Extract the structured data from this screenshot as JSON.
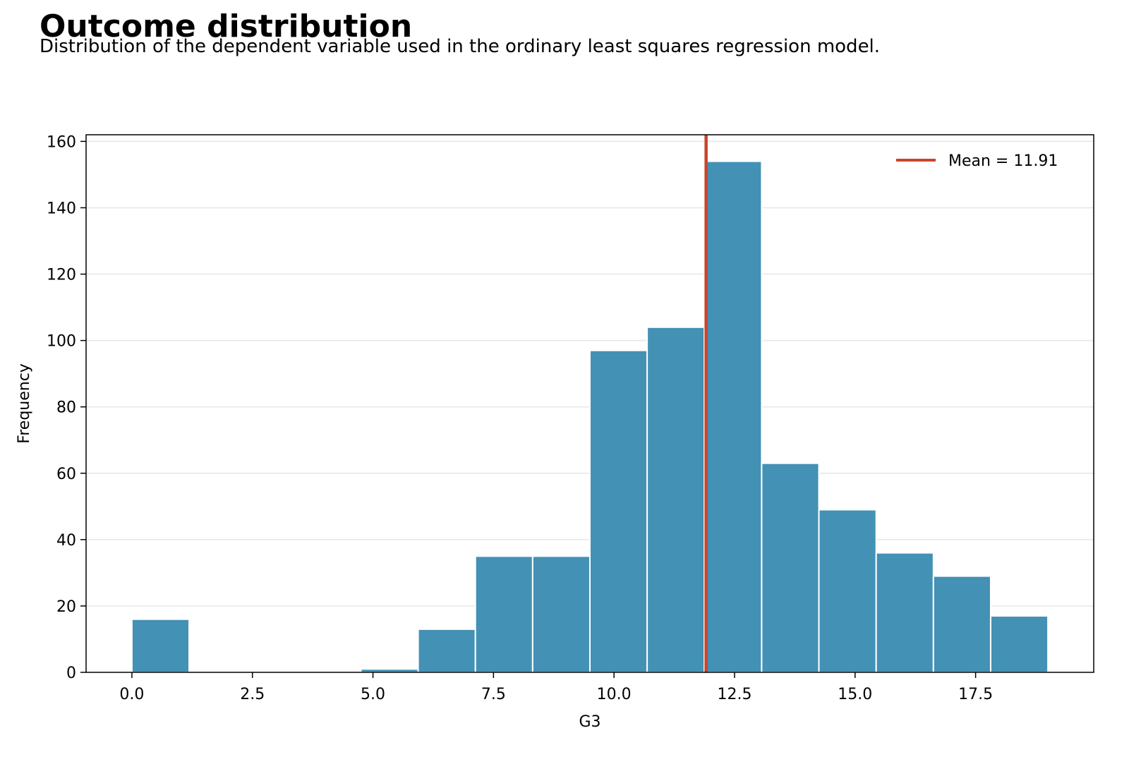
{
  "header": {
    "title": "Outcome distribution",
    "subtitle": "Distribution of the dependent variable used in the ordinary least squares regression model."
  },
  "chart_data": {
    "type": "bar",
    "title": "Outcome distribution",
    "subtitle": "Distribution of the dependent variable used in the ordinary least squares regression model.",
    "xlabel": "G3",
    "ylabel": "Frequency",
    "xlim": [
      -0.95,
      19.95
    ],
    "ylim": [
      0,
      162
    ],
    "bin_edges": [
      0,
      1.1875,
      2.375,
      3.5625,
      4.75,
      5.9375,
      7.125,
      8.3125,
      9.5,
      10.6875,
      11.875,
      13.0625,
      14.25,
      15.4375,
      16.625,
      17.8125,
      19
    ],
    "values": [
      16,
      0,
      0,
      0,
      1,
      13,
      35,
      35,
      97,
      104,
      154,
      63,
      49,
      36,
      29,
      17
    ],
    "x_ticks": [
      0,
      2.5,
      5,
      7.5,
      10,
      12.5,
      15,
      17.5
    ],
    "x_tick_labels": [
      "0.0",
      "2.5",
      "5.0",
      "7.5",
      "10.0",
      "12.5",
      "15.0",
      "17.5"
    ],
    "y_ticks": [
      0,
      20,
      40,
      60,
      80,
      100,
      120,
      140,
      160
    ],
    "y_tick_labels": [
      "0",
      "20",
      "40",
      "60",
      "80",
      "100",
      "120",
      "140",
      "160"
    ],
    "mean": 11.91,
    "legend": {
      "label": "Mean = 11.91",
      "placement": "top-right"
    },
    "grid": {
      "y": true,
      "x": false
    },
    "colors": {
      "bar": "#4391b4",
      "bar_edge": "#ffffff",
      "mean_line": "#c8452a",
      "grid": "#e6e6e6"
    }
  }
}
